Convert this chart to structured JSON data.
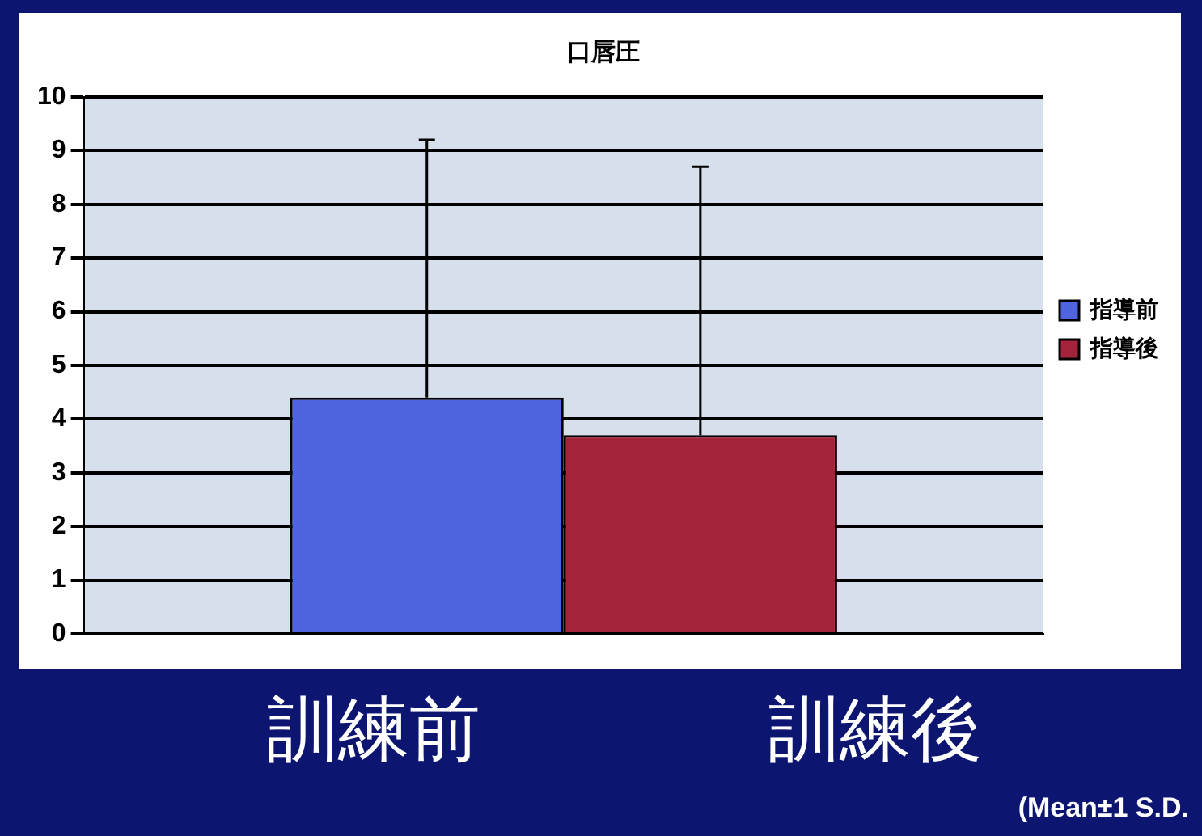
{
  "chart_data": {
    "type": "bar",
    "title": "口唇圧",
    "categories": [
      null
    ],
    "series": [
      {
        "name": "指導前",
        "color": "#5064e0",
        "values": [
          4.4
        ],
        "errors": [
          [
            4.4,
            9.2
          ]
        ]
      },
      {
        "name": "指導後",
        "color": "#a4243c",
        "values": [
          3.7
        ],
        "errors": [
          [
            3.7,
            8.7
          ]
        ]
      }
    ],
    "ylim": [
      0,
      10
    ],
    "yticks": [
      0,
      1,
      2,
      3,
      4,
      5,
      6,
      7,
      8,
      9,
      10
    ],
    "grid": "y",
    "legend": "right",
    "tick_labels": "y",
    "annotations": [
      "訓練前",
      "訓練後",
      "(Mean±1 S.D."
    ]
  }
}
